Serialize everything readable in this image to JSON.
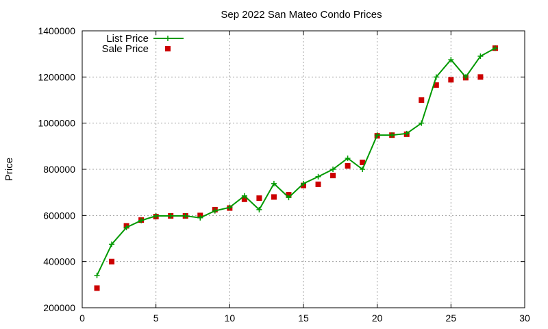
{
  "chart_data": {
    "type": "line",
    "title": "Sep 2022 San Mateo Condo Prices",
    "xlabel": "",
    "ylabel": "Price",
    "xlim": [
      0,
      30
    ],
    "ylim": [
      200000,
      1400000
    ],
    "xticks": [
      0,
      5,
      10,
      15,
      20,
      25,
      30
    ],
    "yticks": [
      200000,
      400000,
      600000,
      800000,
      1000000,
      1200000,
      1400000
    ],
    "grid": true,
    "legend_position": "top-left",
    "series": [
      {
        "name": "List Price",
        "kind": "line-with-plus-markers",
        "color": "#009900",
        "points": [
          [
            1,
            340000
          ],
          [
            2,
            475000
          ],
          [
            3,
            548000
          ],
          [
            4,
            578000
          ],
          [
            5,
            598000
          ],
          [
            6,
            598000
          ],
          [
            7,
            598000
          ],
          [
            8,
            590000
          ],
          [
            9,
            620000
          ],
          [
            10,
            635000
          ],
          [
            11,
            685000
          ],
          [
            12,
            625000
          ],
          [
            13,
            738000
          ],
          [
            14,
            678000
          ],
          [
            15,
            738000
          ],
          [
            16,
            768000
          ],
          [
            17,
            800000
          ],
          [
            18,
            848000
          ],
          [
            19,
            800000
          ],
          [
            20,
            948000
          ],
          [
            21,
            948000
          ],
          [
            22,
            955000
          ],
          [
            23,
            1000000
          ],
          [
            24,
            1200000
          ],
          [
            25,
            1275000
          ],
          [
            26,
            1200000
          ],
          [
            27,
            1290000
          ],
          [
            28,
            1325000
          ]
        ]
      },
      {
        "name": "Sale Price",
        "kind": "square-markers",
        "color": "#cc0000",
        "points": [
          [
            1,
            285000
          ],
          [
            2,
            400000
          ],
          [
            3,
            555000
          ],
          [
            4,
            580000
          ],
          [
            5,
            595000
          ],
          [
            6,
            598000
          ],
          [
            7,
            598000
          ],
          [
            8,
            600000
          ],
          [
            9,
            625000
          ],
          [
            10,
            632000
          ],
          [
            11,
            670000
          ],
          [
            12,
            675000
          ],
          [
            13,
            680000
          ],
          [
            14,
            690000
          ],
          [
            15,
            730000
          ],
          [
            16,
            735000
          ],
          [
            17,
            773000
          ],
          [
            18,
            815000
          ],
          [
            19,
            830000
          ],
          [
            20,
            945000
          ],
          [
            21,
            948000
          ],
          [
            22,
            952000
          ],
          [
            23,
            1100000
          ],
          [
            24,
            1165000
          ],
          [
            25,
            1188000
          ],
          [
            26,
            1197000
          ],
          [
            27,
            1200000
          ],
          [
            28,
            1325000
          ]
        ]
      }
    ]
  }
}
